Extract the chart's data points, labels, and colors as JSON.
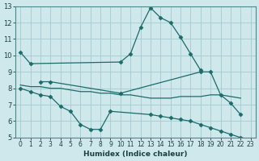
{
  "xlabel": "Humidex (Indice chaleur)",
  "xlim": [
    -0.5,
    23.5
  ],
  "ylim": [
    5,
    13
  ],
  "xticks": [
    0,
    1,
    2,
    3,
    4,
    5,
    6,
    7,
    8,
    9,
    10,
    11,
    12,
    13,
    14,
    15,
    16,
    17,
    18,
    19,
    20,
    21,
    22,
    23
  ],
  "yticks": [
    5,
    6,
    7,
    8,
    9,
    10,
    11,
    12,
    13
  ],
  "background_color": "#cfe8ec",
  "grid_color": "#aacdd4",
  "line_color": "#1a6b6a",
  "series": [
    {
      "x": [
        0,
        1,
        10,
        11,
        12,
        13,
        14,
        15,
        16,
        17,
        18
      ],
      "y": [
        10.2,
        9.5,
        9.6,
        10.1,
        11.7,
        12.9,
        12.3,
        12.0,
        11.1,
        10.1,
        9.1
      ],
      "marker": "D",
      "markersize": 2.5
    },
    {
      "x": [
        2,
        3,
        10,
        18,
        19,
        20,
        21,
        22
      ],
      "y": [
        8.4,
        8.4,
        7.7,
        9.0,
        9.0,
        7.6,
        7.1,
        6.4
      ],
      "marker": "D",
      "markersize": 2.5
    },
    {
      "x": [
        0,
        1,
        2,
        3,
        4,
        5,
        6,
        7,
        8,
        9,
        10,
        11,
        12,
        13,
        14,
        15,
        16,
        17,
        18,
        19,
        20,
        21,
        22
      ],
      "y": [
        8.2,
        8.1,
        8.1,
        8.0,
        8.0,
        7.9,
        7.8,
        7.8,
        7.7,
        7.7,
        7.6,
        7.6,
        7.5,
        7.4,
        7.4,
        7.4,
        7.5,
        7.5,
        7.5,
        7.6,
        7.6,
        7.5,
        7.4
      ],
      "marker": null,
      "markersize": 0
    },
    {
      "x": [
        0,
        1,
        2,
        3,
        4,
        5,
        6,
        7,
        8,
        9,
        13,
        14,
        15,
        16,
        17,
        18,
        19,
        20,
        21,
        22,
        23
      ],
      "y": [
        8.0,
        7.8,
        7.6,
        7.5,
        6.9,
        6.6,
        5.8,
        5.5,
        5.5,
        6.6,
        6.4,
        6.3,
        6.2,
        6.1,
        6.0,
        5.8,
        5.6,
        5.4,
        5.2,
        5.0,
        4.9
      ],
      "marker": "D",
      "markersize": 2.5
    }
  ]
}
